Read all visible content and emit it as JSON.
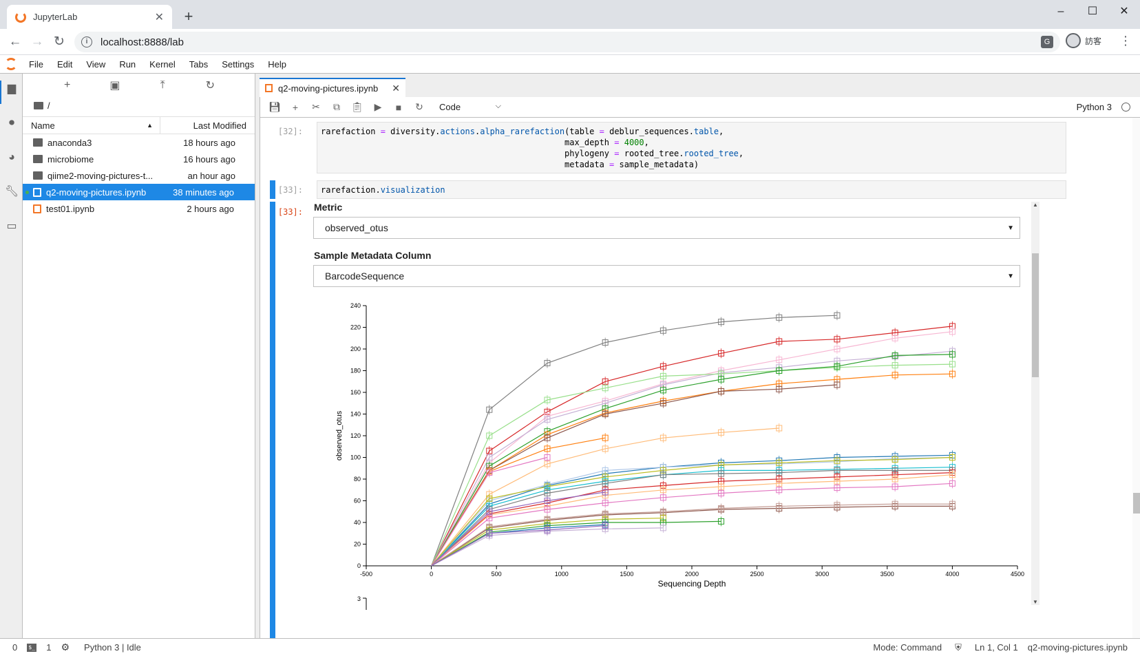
{
  "browser": {
    "tab_title": "JupyterLab",
    "new_tab": "+",
    "url": "localhost:8888/lab",
    "profile_label": "訪客",
    "min": "–",
    "max": "☐",
    "close": "✕"
  },
  "menubar": {
    "items": [
      "File",
      "Edit",
      "View",
      "Run",
      "Kernel",
      "Tabs",
      "Settings",
      "Help"
    ]
  },
  "filebrowser": {
    "breadcrumb": "/",
    "col_name": "Name",
    "col_modified": "Last Modified",
    "files": [
      {
        "name": "anaconda3",
        "modified": "18 hours ago",
        "type": "folder"
      },
      {
        "name": "microbiome",
        "modified": "16 hours ago",
        "type": "folder"
      },
      {
        "name": "qiime2-moving-pictures-t...",
        "modified": "an hour ago",
        "type": "folder"
      },
      {
        "name": "q2-moving-pictures.ipynb",
        "modified": "38 minutes ago",
        "type": "notebook",
        "selected": true
      },
      {
        "name": "test01.ipynb",
        "modified": "2 hours ago",
        "type": "notebook"
      }
    ]
  },
  "notebook": {
    "tab_title": "q2-moving-pictures.ipynb",
    "cell_type": "Code",
    "kernel": "Python 3",
    "cells": {
      "c32_prompt": "[32]:",
      "c33_prompt": "[33]:",
      "out33_prompt": "[33]:"
    },
    "metric_label": "Metric",
    "metric_value": "observed_otus",
    "column_label": "Sample Metadata Column",
    "column_value": "BarcodeSequence"
  },
  "chart_data": {
    "type": "line",
    "xlabel": "Sequencing Depth",
    "ylabel": "observed_otus",
    "xlim": [
      -500,
      4500
    ],
    "ylim": [
      0,
      240
    ],
    "x_ticks": [
      -500,
      0,
      500,
      1000,
      1500,
      2000,
      2500,
      3000,
      3500,
      4000,
      4500
    ],
    "y_ticks": [
      0,
      20,
      40,
      60,
      80,
      100,
      120,
      140,
      160,
      180,
      200,
      220,
      240
    ],
    "next_chart_tick": "3",
    "x": [
      0,
      445,
      890,
      1335,
      1780,
      2225,
      2670,
      3115,
      3560,
      4000
    ],
    "series": [
      {
        "color": "#7f7f7f",
        "values": [
          0,
          144,
          187,
          206,
          217,
          225,
          229,
          231,
          null,
          null
        ]
      },
      {
        "color": "#d62728",
        "values": [
          0,
          106,
          142,
          170,
          184,
          196,
          207,
          209,
          215,
          221
        ]
      },
      {
        "color": "#f7b6d2",
        "values": [
          0,
          95,
          138,
          152,
          168,
          180,
          190,
          200,
          210,
          216
        ]
      },
      {
        "color": "#c5b0d5",
        "values": [
          0,
          100,
          135,
          150,
          167,
          178,
          183,
          189,
          193,
          198
        ]
      },
      {
        "color": "#98df8a",
        "values": [
          0,
          120,
          153,
          164,
          175,
          177,
          180,
          183,
          185,
          186
        ]
      },
      {
        "color": "#2ca02c",
        "values": [
          0,
          92,
          124,
          145,
          162,
          172,
          180,
          184,
          194,
          195
        ]
      },
      {
        "color": "#ff7f0e",
        "values": [
          0,
          88,
          121,
          141,
          152,
          161,
          168,
          172,
          176,
          177
        ]
      },
      {
        "color": "#8c564b",
        "values": [
          0,
          88,
          118,
          140,
          150,
          161,
          163,
          167,
          null,
          null
        ]
      },
      {
        "color": "#ff7f0e",
        "values": [
          0,
          87,
          108,
          118,
          null,
          null,
          null,
          null,
          null,
          null
        ]
      },
      {
        "color": "#ffbb78",
        "values": [
          0,
          66,
          94,
          108,
          118,
          123,
          127,
          null,
          null,
          null
        ]
      },
      {
        "color": "#1f77b4",
        "values": [
          0,
          57,
          74,
          85,
          91,
          95,
          97,
          100,
          101,
          102
        ]
      },
      {
        "color": "#e377c2",
        "values": [
          0,
          86,
          100,
          null,
          null,
          null,
          null,
          null,
          null,
          null
        ]
      },
      {
        "color": "#aec7e8",
        "values": [
          0,
          60,
          75,
          88,
          91,
          93,
          94,
          96,
          99,
          100
        ]
      },
      {
        "color": "#bcbd22",
        "values": [
          0,
          62,
          73,
          82,
          88,
          93,
          95,
          97,
          98,
          100
        ]
      },
      {
        "color": "#17becf",
        "values": [
          0,
          55,
          70,
          78,
          84,
          88,
          88,
          89,
          90,
          91
        ]
      },
      {
        "color": "#7f7f7f",
        "values": [
          0,
          52,
          67,
          76,
          84,
          85,
          86,
          88,
          88,
          88
        ]
      },
      {
        "color": "#d62728",
        "values": [
          0,
          48,
          58,
          70,
          74,
          78,
          80,
          82,
          84,
          86
        ]
      },
      {
        "color": "#ffbb78",
        "values": [
          0,
          47,
          55,
          65,
          70,
          73,
          76,
          78,
          80,
          84
        ]
      },
      {
        "color": "#9467bd",
        "values": [
          0,
          50,
          60,
          68,
          null,
          null,
          null,
          null,
          null,
          null
        ]
      },
      {
        "color": "#e377c2",
        "values": [
          0,
          44,
          52,
          58,
          63,
          67,
          70,
          72,
          73,
          76
        ]
      },
      {
        "color": "#8c564b",
        "values": [
          0,
          35,
          42,
          47,
          49,
          52,
          53,
          54,
          55,
          55
        ]
      },
      {
        "color": "#c49c94",
        "values": [
          0,
          36,
          43,
          48,
          50,
          53,
          55,
          56,
          57,
          57
        ]
      },
      {
        "color": "#bcbd22",
        "values": [
          0,
          33,
          39,
          43,
          44,
          null,
          null,
          null,
          null,
          null
        ]
      },
      {
        "color": "#2ca02c",
        "values": [
          0,
          31,
          37,
          40,
          40,
          41,
          null,
          null,
          null,
          null
        ]
      },
      {
        "color": "#1f77b4",
        "values": [
          0,
          30,
          35,
          38,
          null,
          null,
          null,
          null,
          null,
          null
        ]
      },
      {
        "color": "#c5b0d5",
        "values": [
          0,
          28,
          32,
          34,
          35,
          null,
          null,
          null,
          null,
          null
        ]
      },
      {
        "color": "#9467bd",
        "values": [
          0,
          30,
          33,
          37,
          null,
          null,
          null,
          null,
          null,
          null
        ]
      }
    ]
  },
  "statusbar": {
    "terminals": "0",
    "kernels": "1",
    "kernel_status": "Python 3 | Idle",
    "mode": "Mode: Command",
    "position": "Ln 1, Col 1",
    "filename": "q2-moving-pictures.ipynb"
  }
}
